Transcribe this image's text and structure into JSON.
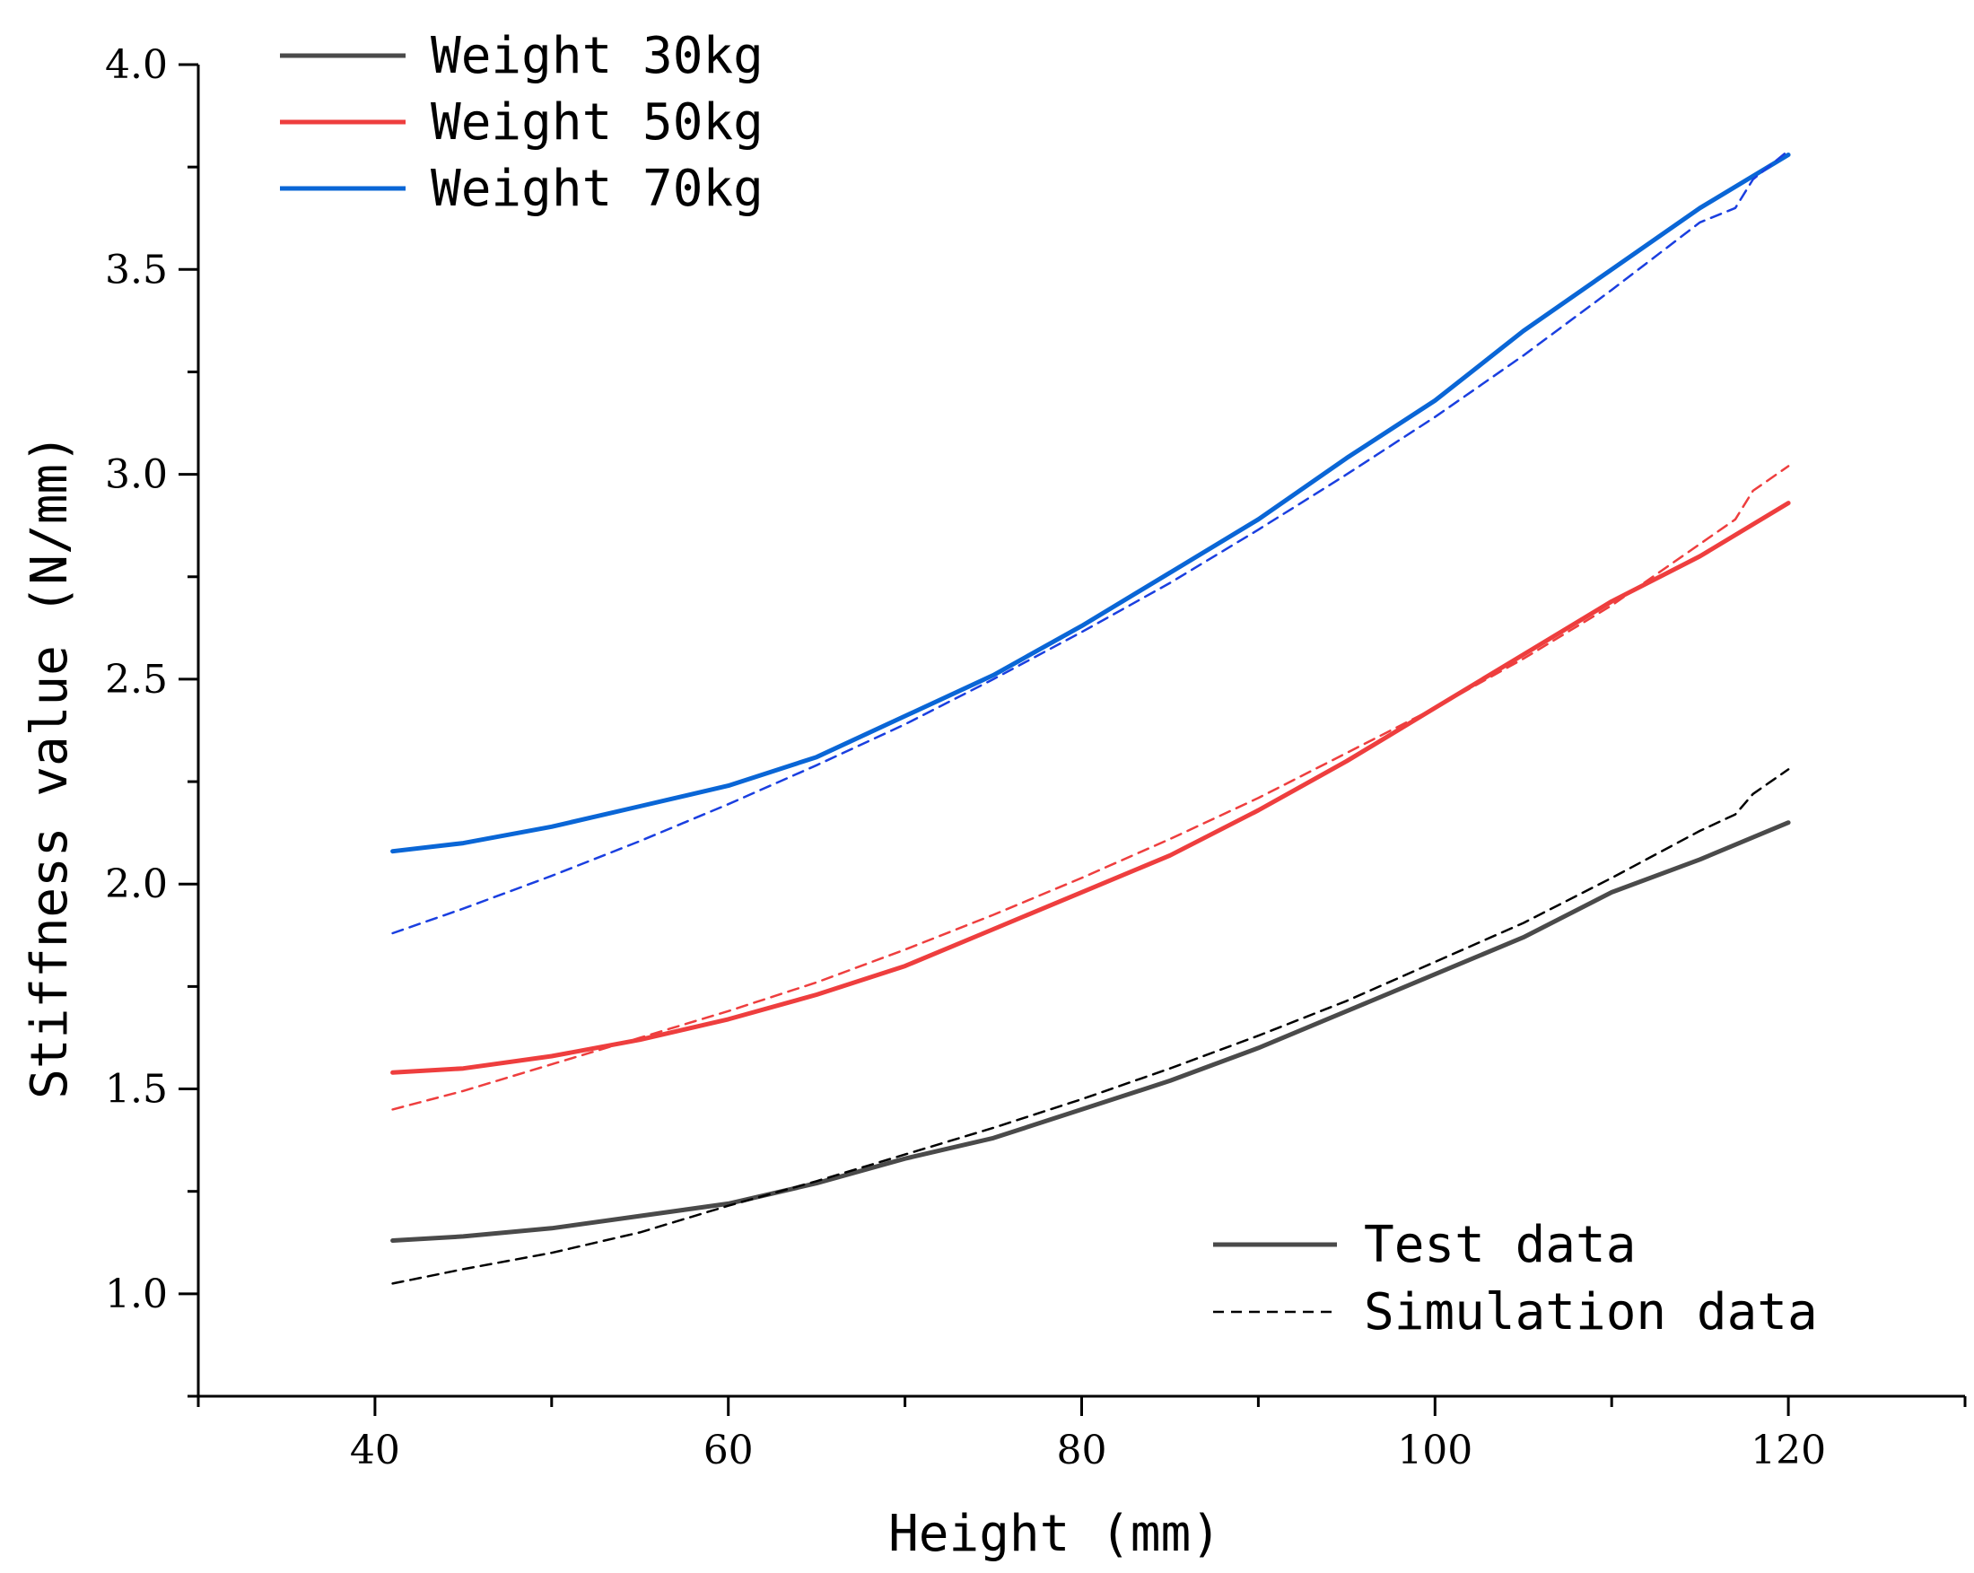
{
  "chart_data": {
    "type": "line",
    "title": "",
    "xlabel": "Height (mm)",
    "ylabel": "Stiffness value (N/mm)",
    "xlim": [
      30,
      130
    ],
    "ylim": [
      0.75,
      4.0
    ],
    "xticks": [
      40,
      60,
      80,
      100,
      120
    ],
    "xtick_labels": [
      "40",
      "60",
      "80",
      "100",
      "120"
    ],
    "yticks": [
      1.0,
      1.5,
      2.0,
      2.5,
      3.0,
      3.5,
      4.0
    ],
    "ytick_labels": [
      "1.0",
      "1.5",
      "2.0",
      "2.5",
      "3.0",
      "3.5",
      "4.0"
    ],
    "grid": false,
    "series": [
      {
        "name": "Weight 30kg",
        "kind": "test",
        "color": "#4a4a4a",
        "x": [
          41,
          45,
          50,
          55,
          60,
          65,
          70,
          75,
          80,
          85,
          90,
          95,
          100,
          105,
          110,
          115,
          120
        ],
        "values": [
          1.13,
          1.14,
          1.16,
          1.19,
          1.22,
          1.27,
          1.33,
          1.38,
          1.45,
          1.52,
          1.6,
          1.69,
          1.78,
          1.87,
          1.98,
          2.06,
          2.15
        ]
      },
      {
        "name": "Weight 30kg",
        "kind": "simulation",
        "color": "#000000",
        "x": [
          41,
          45,
          50,
          55,
          60,
          65,
          70,
          75,
          80,
          85,
          90,
          95,
          100,
          105,
          110,
          115,
          117,
          118,
          120
        ],
        "values": [
          1.025,
          1.06,
          1.1,
          1.15,
          1.215,
          1.275,
          1.34,
          1.405,
          1.475,
          1.55,
          1.63,
          1.715,
          1.81,
          1.905,
          2.015,
          2.13,
          2.17,
          2.22,
          2.28
        ]
      },
      {
        "name": "Weight 50kg",
        "kind": "test",
        "color": "#ee3e3e",
        "x": [
          41,
          45,
          50,
          55,
          60,
          65,
          70,
          75,
          80,
          85,
          90,
          95,
          100,
          105,
          110,
          115,
          120
        ],
        "values": [
          1.54,
          1.55,
          1.58,
          1.62,
          1.67,
          1.73,
          1.8,
          1.89,
          1.98,
          2.07,
          2.18,
          2.3,
          2.43,
          2.56,
          2.69,
          2.8,
          2.93
        ]
      },
      {
        "name": "Weight 50kg",
        "kind": "simulation",
        "color": "#ee3e3e",
        "x": [
          41,
          45,
          50,
          55,
          60,
          65,
          70,
          75,
          80,
          85,
          90,
          95,
          100,
          105,
          110,
          115,
          117,
          118,
          120
        ],
        "values": [
          1.45,
          1.495,
          1.56,
          1.625,
          1.69,
          1.76,
          1.84,
          1.925,
          2.015,
          2.11,
          2.21,
          2.32,
          2.43,
          2.55,
          2.68,
          2.83,
          2.89,
          2.96,
          3.02
        ]
      },
      {
        "name": "Weight 70kg",
        "kind": "test",
        "color": "#0a66d6",
        "x": [
          41,
          45,
          50,
          55,
          60,
          65,
          70,
          75,
          80,
          85,
          90,
          95,
          100,
          105,
          110,
          115,
          120
        ],
        "values": [
          2.08,
          2.1,
          2.14,
          2.19,
          2.24,
          2.31,
          2.41,
          2.51,
          2.63,
          2.76,
          2.89,
          3.04,
          3.18,
          3.35,
          3.5,
          3.65,
          3.78
        ]
      },
      {
        "name": "Weight 70kg",
        "kind": "simulation",
        "color": "#1a3fe0",
        "x": [
          41,
          45,
          50,
          55,
          60,
          65,
          70,
          75,
          80,
          85,
          90,
          95,
          100,
          105,
          110,
          115,
          117,
          118,
          120
        ],
        "values": [
          1.88,
          1.94,
          2.02,
          2.105,
          2.195,
          2.29,
          2.39,
          2.5,
          2.615,
          2.735,
          2.865,
          3.0,
          3.14,
          3.29,
          3.45,
          3.615,
          3.65,
          3.72,
          3.79
        ]
      }
    ],
    "legends": [
      {
        "position": "top-left",
        "entries": [
          {
            "label": "Weight 30kg",
            "color": "#4a4a4a",
            "style": "solid"
          },
          {
            "label": "Weight 50kg",
            "color": "#ee3e3e",
            "style": "solid"
          },
          {
            "label": "Weight 70kg",
            "color": "#0a66d6",
            "style": "solid"
          }
        ]
      },
      {
        "position": "bottom-right",
        "entries": [
          {
            "label": "Test data",
            "color": "#4a4a4a",
            "style": "solid"
          },
          {
            "label": "Simulation data",
            "color": "#000000",
            "style": "dashed"
          }
        ]
      }
    ]
  }
}
